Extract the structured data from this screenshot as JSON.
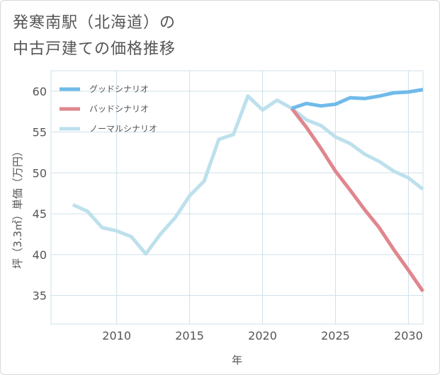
{
  "title": "発寒南駅（北海道）の\n中古戸建ての価格推移",
  "chart_data": {
    "type": "line",
    "xlabel": "年",
    "ylabel": "坪（3.3㎡）単価（万円）",
    "xlim": [
      2005.5,
      2031
    ],
    "ylim": [
      31.5,
      62.5
    ],
    "xticks": [
      2010,
      2015,
      2020,
      2025,
      2030
    ],
    "yticks": [
      35,
      40,
      45,
      50,
      55,
      60
    ],
    "grid": true,
    "legend_position": "top-left",
    "series": [
      {
        "name": "グッドシナリオ",
        "color": "#6fbaea",
        "x": [
          2022,
          2023,
          2024,
          2025,
          2026,
          2027,
          2028,
          2029,
          2030,
          2031
        ],
        "y": [
          57.9,
          58.5,
          58.2,
          58.4,
          59.2,
          59.1,
          59.4,
          59.8,
          59.9,
          60.2
        ]
      },
      {
        "name": "バッドシナリオ",
        "color": "#e0868e",
        "x": [
          2022,
          2023,
          2024,
          2025,
          2026,
          2027,
          2028,
          2029,
          2030,
          2031
        ],
        "y": [
          57.9,
          55.6,
          53.0,
          50.2,
          47.9,
          45.5,
          43.3,
          40.6,
          38.1,
          35.5
        ]
      },
      {
        "name": "ノーマルシナリオ",
        "color": "#bde0ec",
        "x": [
          2007,
          2008,
          2009,
          2010,
          2011,
          2012,
          2013,
          2014,
          2015,
          2016,
          2017,
          2018,
          2019,
          2020,
          2021,
          2022,
          2023,
          2024,
          2025,
          2026,
          2027,
          2028,
          2029,
          2030,
          2031
        ],
        "y": [
          46.1,
          45.3,
          43.3,
          42.9,
          42.2,
          40.1,
          42.5,
          44.5,
          47.2,
          49.0,
          54.1,
          54.7,
          59.4,
          57.7,
          58.9,
          57.9,
          56.5,
          55.8,
          54.4,
          53.6,
          52.3,
          51.4,
          50.2,
          49.4,
          48.0
        ]
      }
    ]
  }
}
